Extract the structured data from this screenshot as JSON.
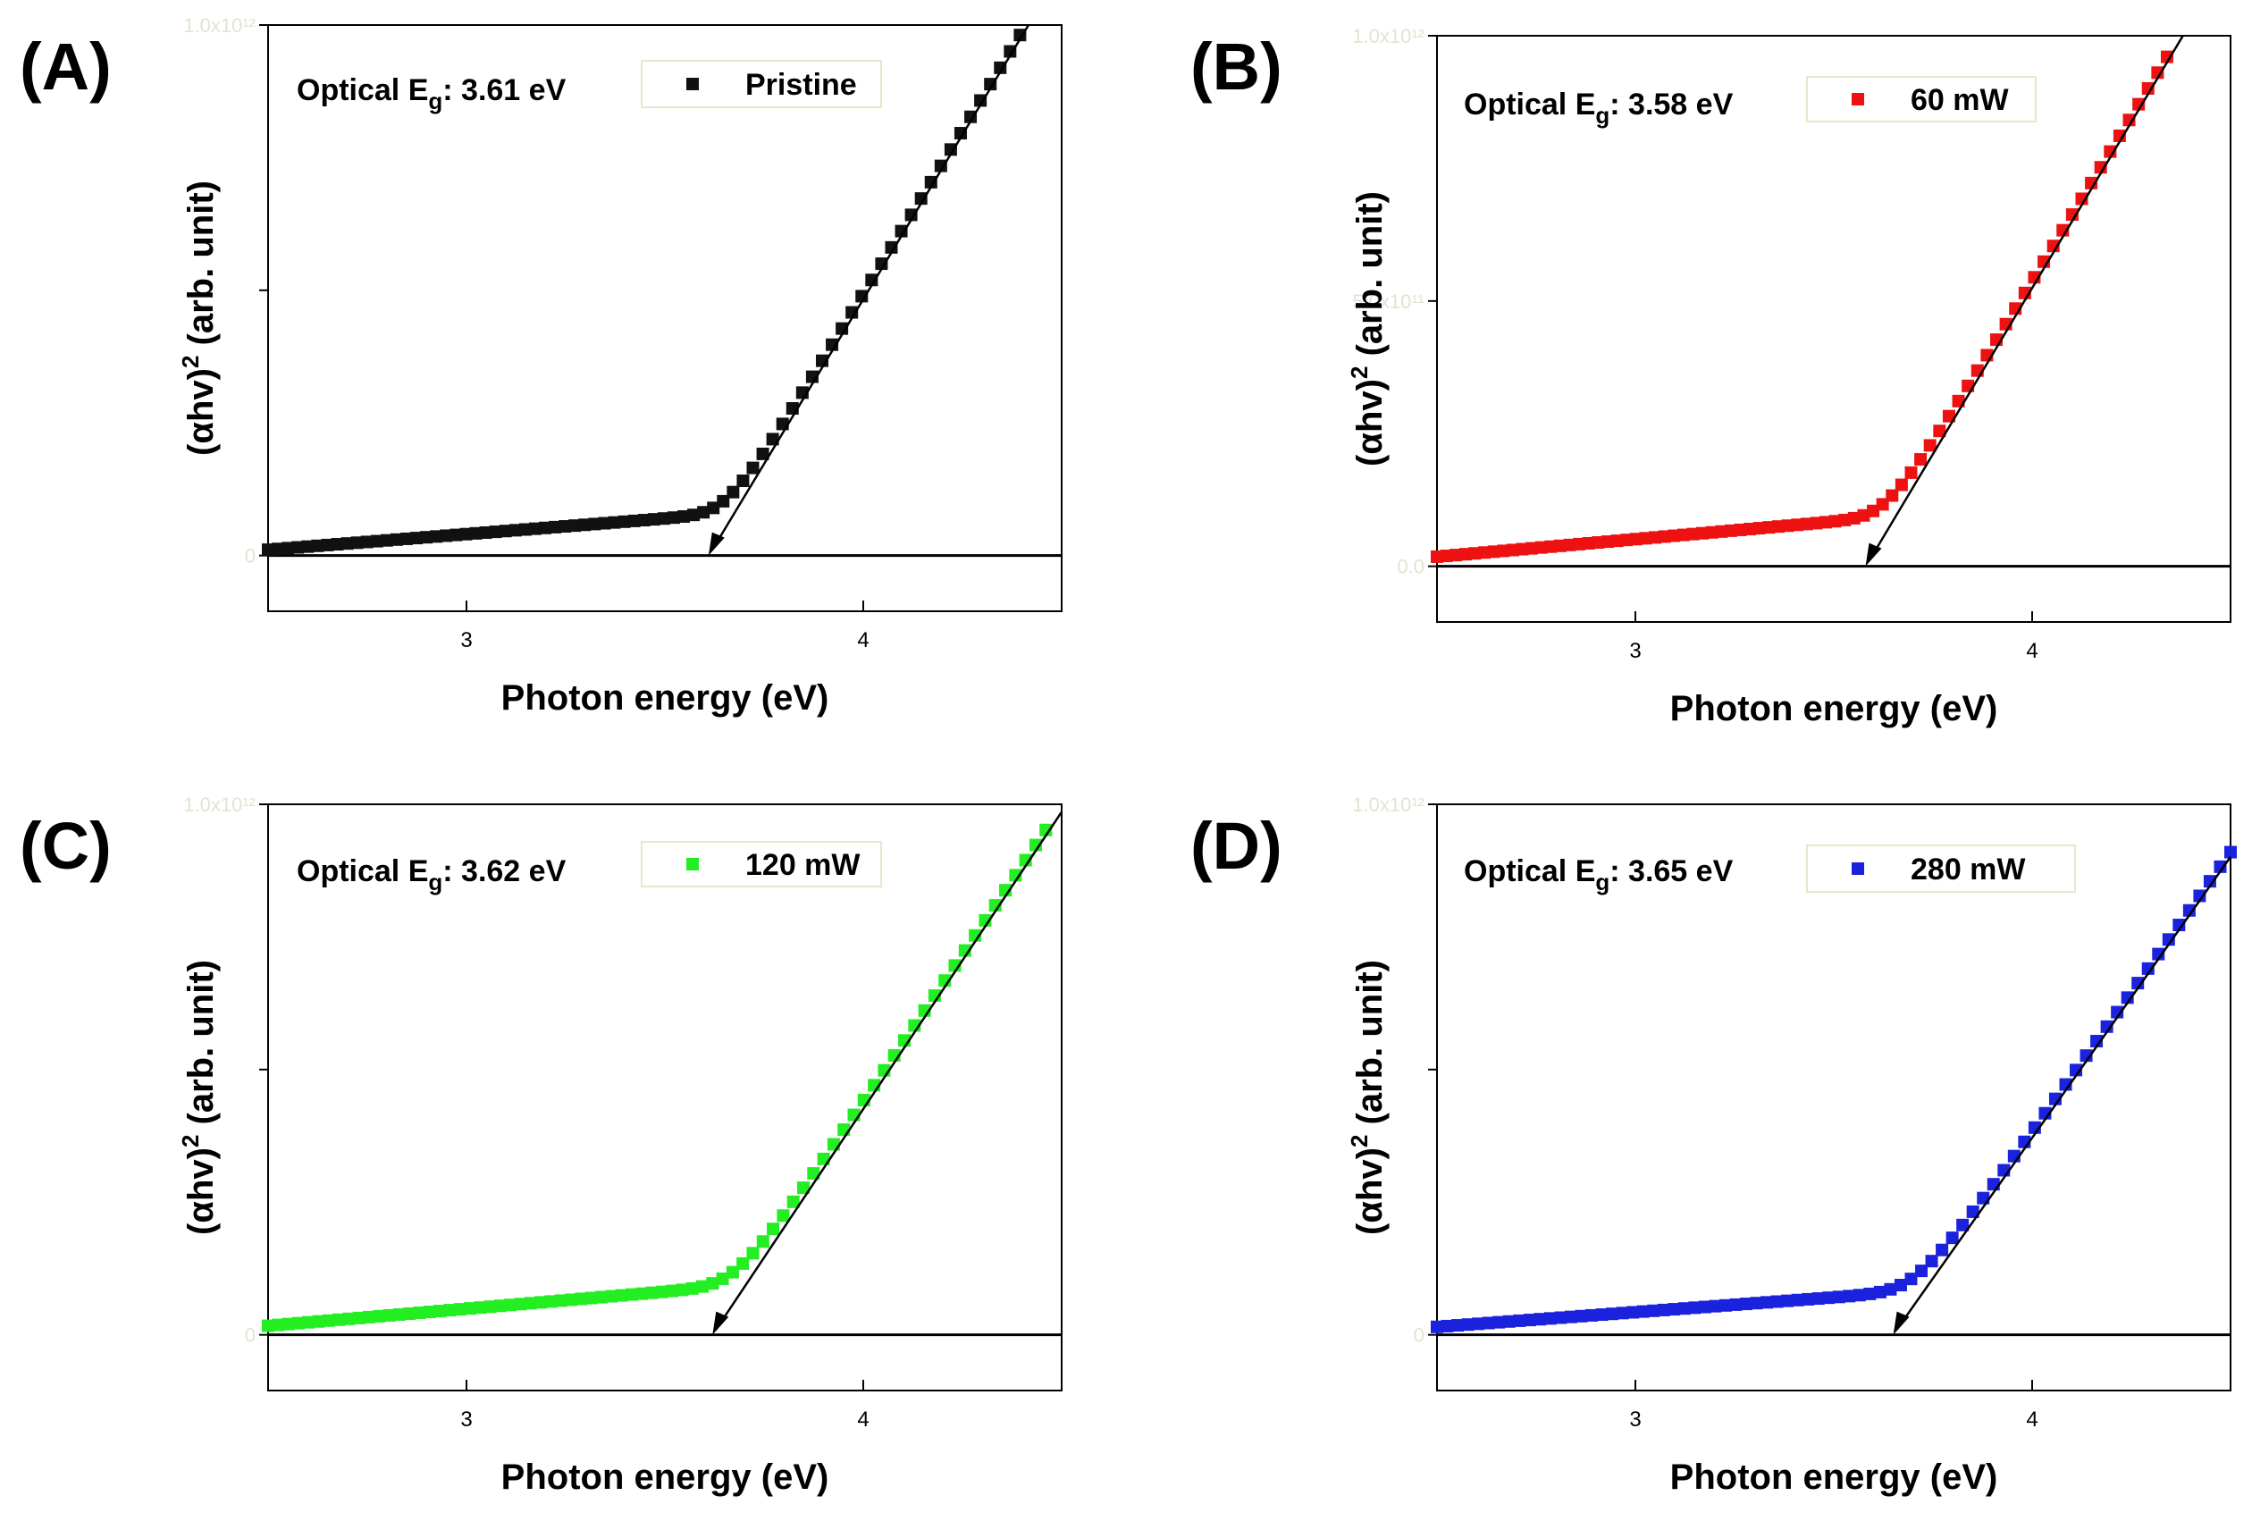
{
  "chart_data": [
    {
      "type": "scatter",
      "panel_label": "(A)",
      "eg_prefix": "Optical E",
      "eg_subscript": "g",
      "eg_value": ": 3.61 eV",
      "legend": "Pristine",
      "color": "#111111",
      "xlabel": "Photon energy (eV)",
      "ylabel_base": "(αhv)",
      "ylabel_exp": "2",
      "ylabel_rest": " (arb. unit)",
      "xticks": [
        3,
        4
      ],
      "xtick_labels": [
        "3",
        "4"
      ],
      "ytick_bottom_label": "0",
      "ytick_top_label": "1.0x10¹²",
      "xlim": [
        2.5,
        4.5
      ],
      "ylim": [
        -0.105,
        1.0
      ],
      "x_end": 4.42,
      "eg": 3.61,
      "slope": 1.24,
      "edge": 3.18,
      "base0": 0.011,
      "base1": 0.04
    },
    {
      "type": "scatter",
      "panel_label": "(B)",
      "eg_prefix": "Optical E",
      "eg_subscript": "g",
      "eg_value": ": 3.58 eV",
      "legend": "60 mW",
      "color": "#ee1111",
      "xlabel": "Photon energy (eV)",
      "ylabel_base": "(αhv)",
      "ylabel_exp": "2",
      "ylabel_rest": " (arb. unit)",
      "xticks": [
        3,
        4
      ],
      "xtick_labels": [
        "3",
        "4"
      ],
      "ytick_bottom_label": "0.0",
      "ytick_middle_label": "5.0x10¹¹",
      "ytick_top_label": "1.0x10¹²",
      "xlim": [
        2.5,
        4.5
      ],
      "ylim": [
        -0.105,
        1.0
      ],
      "x_end": 4.34,
      "eg": 3.58,
      "slope": 1.25,
      "edge": 3.18,
      "base0": 0.018,
      "base1": 0.045
    },
    {
      "type": "scatter",
      "panel_label": "(C)",
      "eg_prefix": "Optical E",
      "eg_subscript": "g",
      "eg_value": ": 3.62 eV",
      "legend": "120 mW",
      "color": "#22ee22",
      "xlabel": "Photon energy (eV)",
      "ylabel_base": "(αhv)",
      "ylabel_exp": "2",
      "ylabel_rest": " (arb. unit)",
      "xticks": [
        3,
        4
      ],
      "xtick_labels": [
        "3",
        "4"
      ],
      "ytick_bottom_label": "0",
      "ytick_top_label": "1.0x10¹²",
      "xlim": [
        2.5,
        4.5
      ],
      "ylim": [
        -0.105,
        1.0
      ],
      "x_end": 4.46,
      "eg": 3.62,
      "slope": 1.12,
      "edge": 3.2,
      "base0": 0.017,
      "base1": 0.045
    },
    {
      "type": "scatter",
      "panel_label": "(D)",
      "eg_prefix": "Optical E",
      "eg_subscript": "g",
      "eg_value": ": 3.65 eV",
      "legend": "280 mW",
      "color": "#1a22dd",
      "xlabel": "Photon energy (eV)",
      "ylabel_base": "(αhv)",
      "ylabel_exp": "2",
      "ylabel_rest": " (arb. unit)",
      "xticks": [
        3,
        4
      ],
      "xtick_labels": [
        "3",
        "4"
      ],
      "ytick_bottom_label": "0",
      "ytick_top_label": "1.0x10¹²",
      "xlim": [
        2.5,
        4.5
      ],
      "ylim": [
        -0.105,
        1.0
      ],
      "x_end": 4.5,
      "eg": 3.65,
      "slope": 1.06,
      "edge": 3.22,
      "base0": 0.015,
      "base1": 0.04
    }
  ]
}
